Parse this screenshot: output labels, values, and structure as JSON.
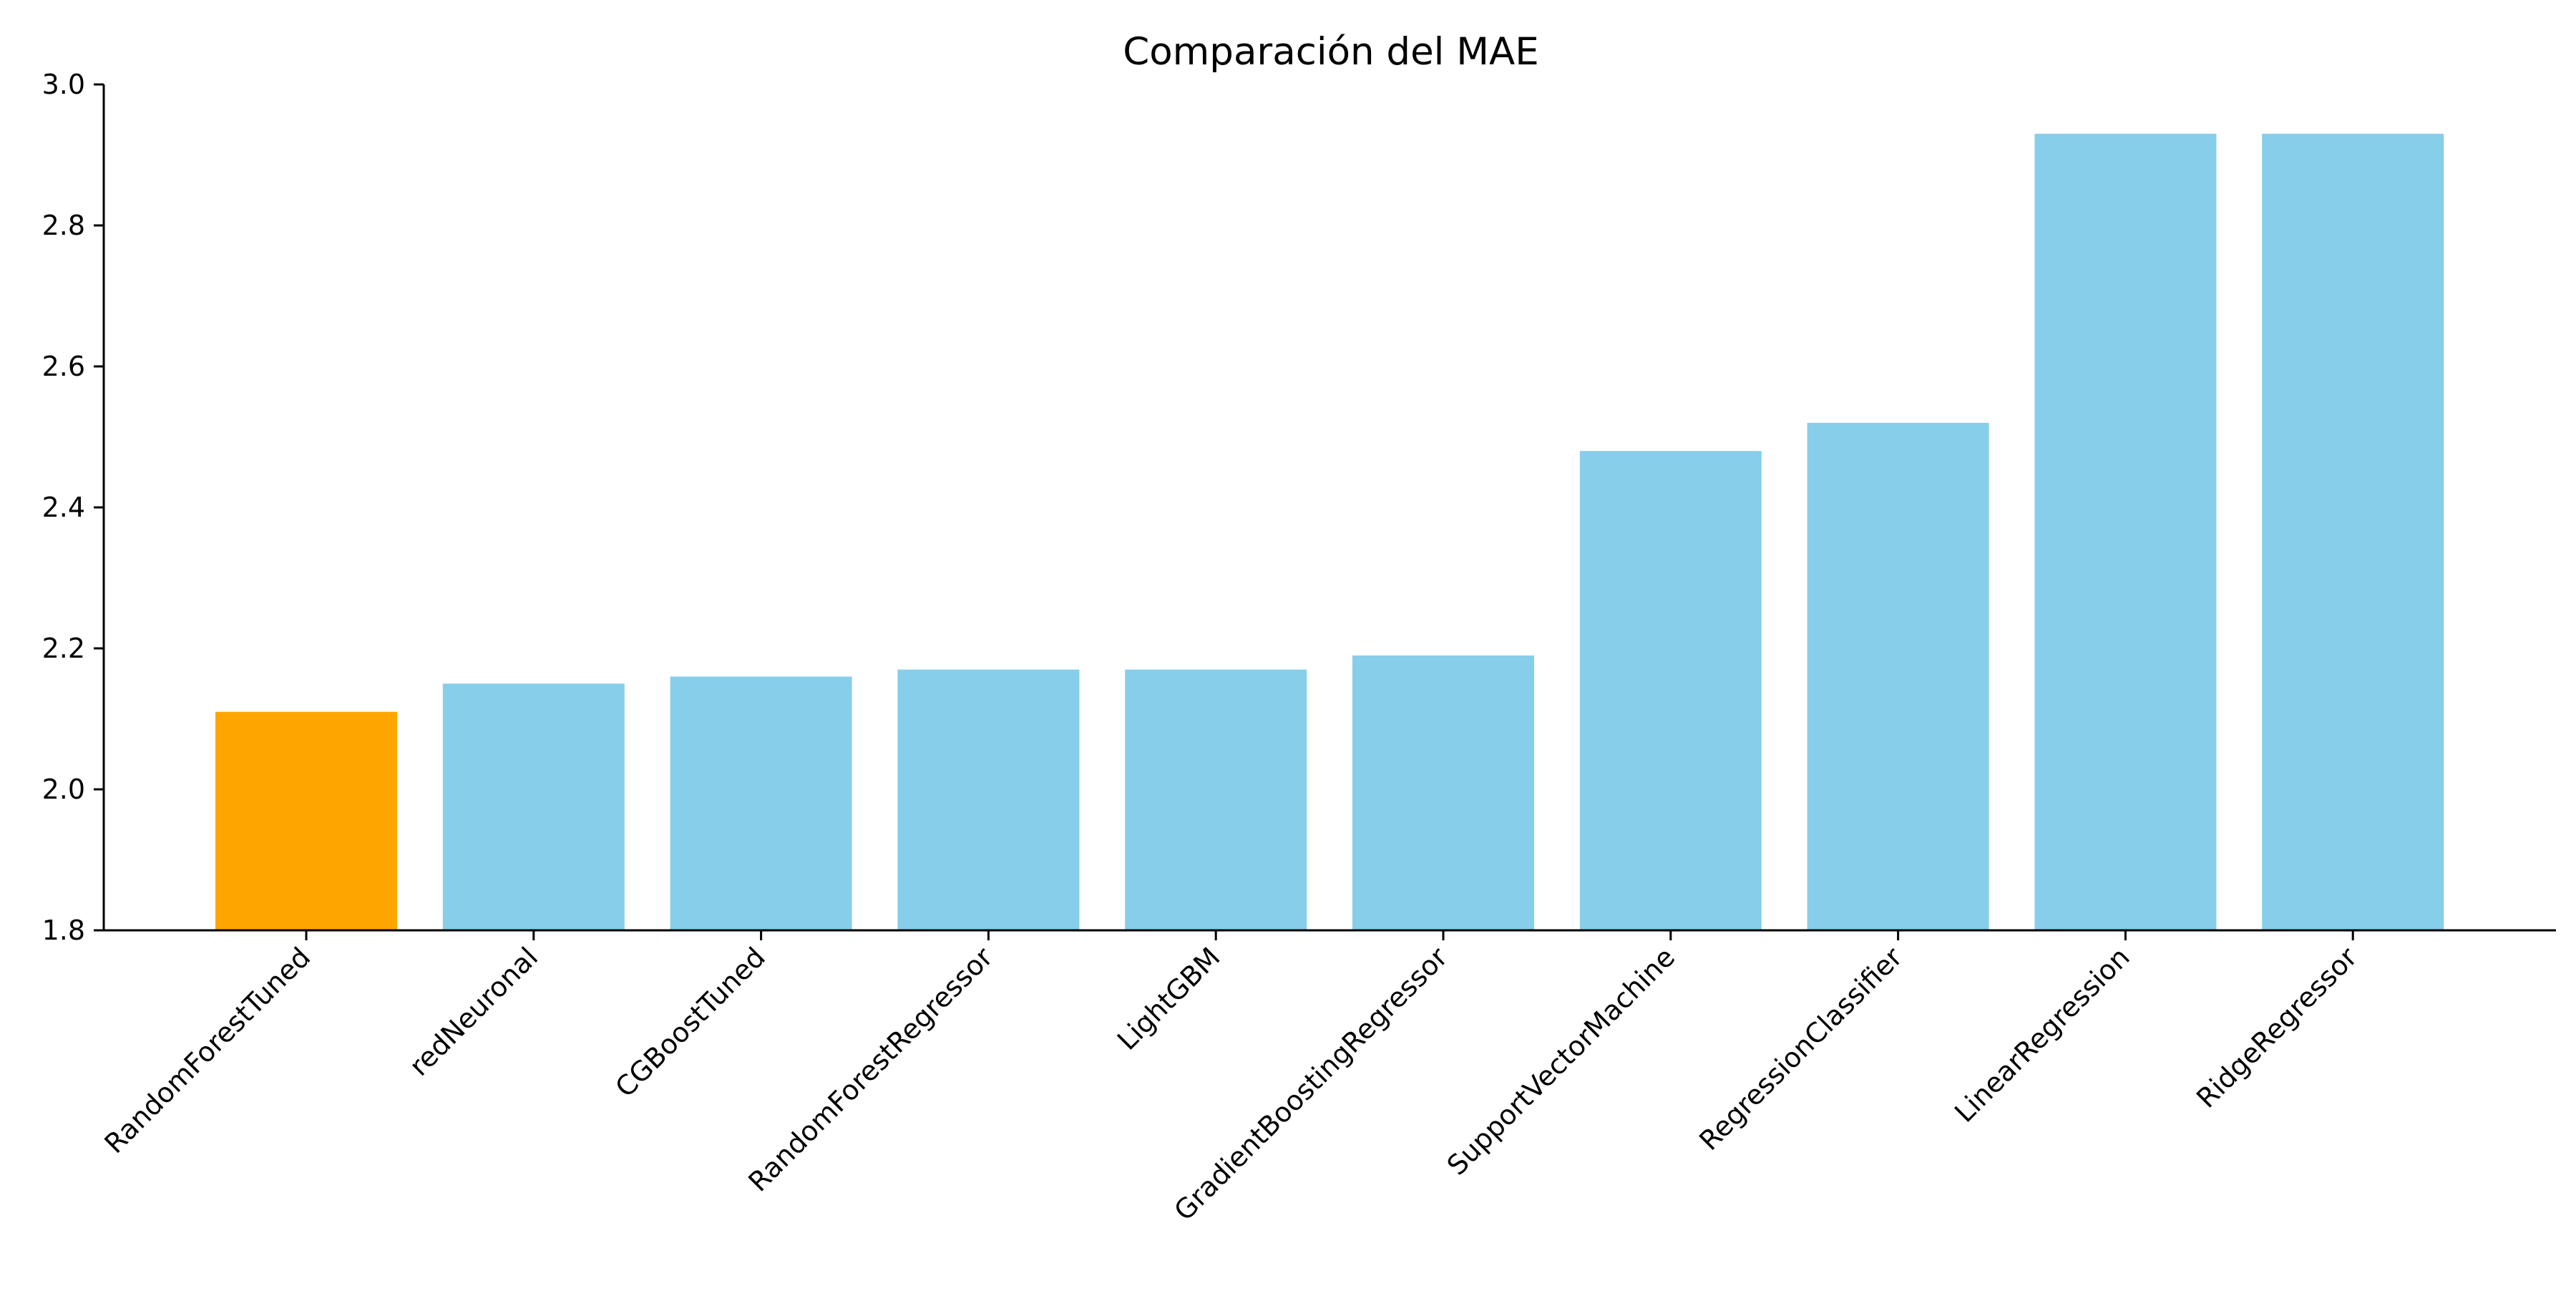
{
  "chart_data": {
    "type": "bar",
    "title": "Comparación del MAE",
    "xlabel": "",
    "ylabel": "",
    "ylim": [
      1.8,
      3.0
    ],
    "yticks": [
      1.8,
      2.0,
      2.2,
      2.4,
      2.6,
      2.8,
      3.0
    ],
    "ytick_labels": [
      "1.8",
      "2.0",
      "2.2",
      "2.4",
      "2.6",
      "2.8",
      "3.0"
    ],
    "grid": false,
    "categories": [
      "RandomForestTuned",
      "redNeuronal",
      "CGBoostTuned",
      "RandomForestRegressor",
      "LightGBM",
      "GradientBoostingRegressor",
      "SupportVectorMachine",
      "RegressionClassifier",
      "LinearRegression",
      "RidgeRegressor"
    ],
    "values": [
      2.11,
      2.15,
      2.16,
      2.17,
      2.17,
      2.19,
      2.48,
      2.52,
      2.93,
      2.93
    ],
    "highlight_index": 0,
    "colors": {
      "default_bar": "#87CEEB",
      "highlight_bar": "#FFA500",
      "axis": "#000000",
      "text": "#000000",
      "background": "#FFFFFF"
    }
  }
}
